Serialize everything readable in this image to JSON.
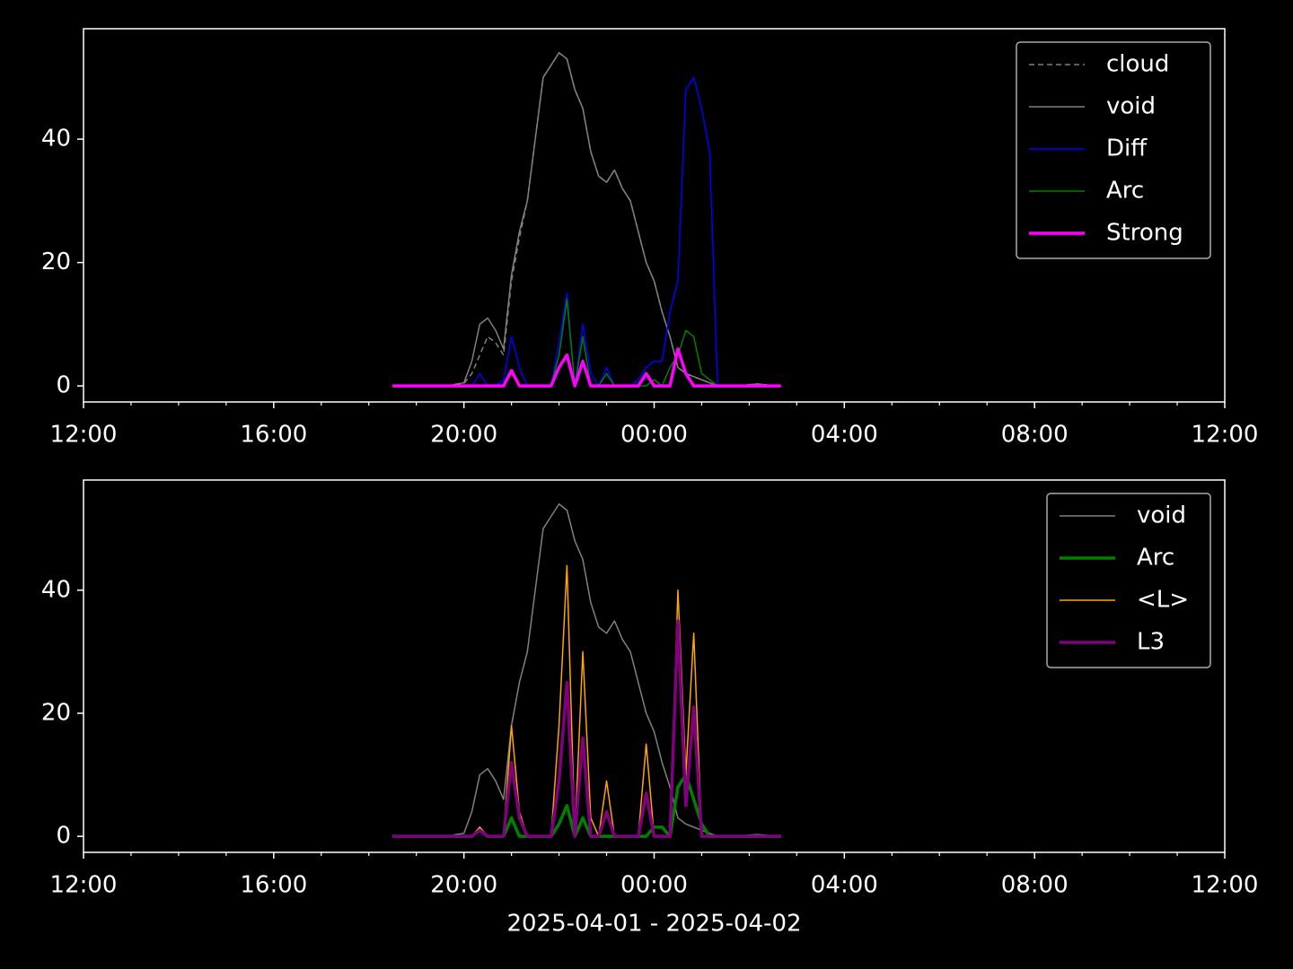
{
  "chart_data": [
    {
      "type": "line",
      "x": [
        "2025-04-01 18:30",
        "2025-04-01 18:40",
        "2025-04-01 18:50",
        "2025-04-01 19:00",
        "2025-04-01 19:10",
        "2025-04-01 19:20",
        "2025-04-01 19:30",
        "2025-04-01 19:40",
        "2025-04-01 19:50",
        "2025-04-01 20:00",
        "2025-04-01 20:10",
        "2025-04-01 20:20",
        "2025-04-01 20:30",
        "2025-04-01 20:40",
        "2025-04-01 20:50",
        "2025-04-01 21:00",
        "2025-04-01 21:10",
        "2025-04-01 21:20",
        "2025-04-01 21:30",
        "2025-04-01 21:40",
        "2025-04-01 21:50",
        "2025-04-01 22:00",
        "2025-04-01 22:10",
        "2025-04-01 22:20",
        "2025-04-01 22:30",
        "2025-04-01 22:40",
        "2025-04-01 22:50",
        "2025-04-01 23:00",
        "2025-04-01 23:10",
        "2025-04-01 23:20",
        "2025-04-01 23:30",
        "2025-04-01 23:40",
        "2025-04-01 23:50",
        "2025-04-02 00:00",
        "2025-04-02 00:10",
        "2025-04-02 00:20",
        "2025-04-02 00:30",
        "2025-04-02 00:40",
        "2025-04-02 00:50",
        "2025-04-02 01:00",
        "2025-04-02 01:10",
        "2025-04-02 01:20",
        "2025-04-02 01:30",
        "2025-04-02 01:40",
        "2025-04-02 01:50",
        "2025-04-02 02:00",
        "2025-04-02 02:10",
        "2025-04-02 02:20",
        "2025-04-02 02:30",
        "2025-04-02 02:40"
      ],
      "series": [
        {
          "name": "cloud",
          "color": "#808080",
          "linestyle": "dashed",
          "linewidth": 1.5,
          "values": [
            0,
            0,
            0,
            0,
            0,
            0,
            0,
            0,
            0.2,
            0.4,
            2,
            5,
            8,
            7,
            5,
            17,
            24,
            30,
            40,
            50,
            52,
            54,
            53,
            48,
            45,
            38,
            34,
            33,
            35,
            32,
            30,
            25,
            20,
            17,
            12,
            8,
            3,
            2,
            1.5,
            1,
            0.5,
            0,
            0,
            0,
            0,
            0.2,
            0.3,
            0.2,
            0,
            0
          ]
        },
        {
          "name": "void",
          "color": "#808080",
          "linestyle": "solid",
          "linewidth": 1.5,
          "values": [
            0,
            0,
            0,
            0,
            0,
            0,
            0,
            0,
            0.3,
            0.5,
            4,
            10,
            11,
            9,
            6,
            18,
            25,
            30,
            40,
            50,
            52,
            54,
            53,
            48,
            45,
            38,
            34,
            33,
            35,
            32,
            30,
            25,
            20,
            17,
            12,
            8,
            3,
            2,
            1.5,
            1,
            0.5,
            0,
            0,
            0,
            0,
            0.2,
            0.3,
            0.2,
            0,
            0
          ]
        },
        {
          "name": "Diff",
          "color": "#0000ff",
          "linestyle": "solid",
          "linewidth": 1.5,
          "values": [
            0,
            0,
            0,
            0,
            0,
            0,
            0,
            0,
            0,
            0,
            0,
            2,
            0,
            0,
            1,
            8,
            3,
            0,
            0,
            0,
            0,
            7,
            15,
            0,
            10,
            2,
            0,
            3,
            0,
            0,
            0,
            1,
            3,
            4,
            4,
            12,
            17,
            48,
            50,
            45,
            38,
            0,
            0,
            0,
            0,
            0,
            0,
            0,
            0,
            0
          ]
        },
        {
          "name": "Arc",
          "color": "#008000",
          "linestyle": "solid",
          "linewidth": 1.5,
          "values": [
            0,
            0,
            0,
            0,
            0,
            0,
            0,
            0,
            0,
            0,
            0,
            0,
            0,
            0,
            0,
            2,
            0,
            0,
            0,
            0,
            0,
            5,
            14,
            0,
            8,
            0,
            0,
            2,
            0,
            0,
            0,
            0,
            0,
            1,
            0,
            3,
            5,
            9,
            8,
            2,
            1,
            0,
            0,
            0,
            0,
            0,
            0,
            0,
            0,
            0
          ]
        },
        {
          "name": "Strong",
          "color": "#ff00ff",
          "linestyle": "solid",
          "linewidth": 3.5,
          "values": [
            0,
            0,
            0,
            0,
            0,
            0,
            0,
            0,
            0,
            0,
            0,
            0,
            0,
            0,
            0,
            2.5,
            0,
            0,
            0,
            0,
            0,
            3,
            5,
            0,
            4,
            0,
            0,
            0,
            0,
            0,
            0,
            0,
            2,
            0,
            0,
            0,
            6,
            2,
            0,
            0,
            0,
            0,
            0,
            0,
            0,
            0,
            0,
            0,
            0,
            0
          ]
        }
      ],
      "xlim": [
        "2025-04-01 12:00",
        "2025-04-02 12:00"
      ],
      "xticks": [
        {
          "value": "2025-04-01 12:00",
          "label": "12:00"
        },
        {
          "value": "2025-04-01 16:00",
          "label": "16:00"
        },
        {
          "value": "2025-04-01 20:00",
          "label": "20:00"
        },
        {
          "value": "2025-04-02 00:00",
          "label": "00:00"
        },
        {
          "value": "2025-04-02 04:00",
          "label": "04:00"
        },
        {
          "value": "2025-04-02 08:00",
          "label": "08:00"
        },
        {
          "value": "2025-04-02 12:00",
          "label": "12:00"
        }
      ],
      "xminorticks": [
        "2025-04-01 13:00",
        "2025-04-01 14:00",
        "2025-04-01 15:00",
        "2025-04-01 17:00",
        "2025-04-01 18:00",
        "2025-04-01 19:00",
        "2025-04-01 21:00",
        "2025-04-01 22:00",
        "2025-04-01 23:00",
        "2025-04-02 01:00",
        "2025-04-02 02:00",
        "2025-04-02 03:00",
        "2025-04-02 05:00",
        "2025-04-02 06:00",
        "2025-04-02 07:00",
        "2025-04-02 09:00",
        "2025-04-02 10:00",
        "2025-04-02 11:00"
      ],
      "ylim": [
        -2.6,
        57.9
      ],
      "yticks": [
        0,
        20,
        40
      ],
      "legend": "upper right"
    },
    {
      "type": "line",
      "x": [
        "2025-04-01 18:30",
        "2025-04-01 18:40",
        "2025-04-01 18:50",
        "2025-04-01 19:00",
        "2025-04-01 19:10",
        "2025-04-01 19:20",
        "2025-04-01 19:30",
        "2025-04-01 19:40",
        "2025-04-01 19:50",
        "2025-04-01 20:00",
        "2025-04-01 20:10",
        "2025-04-01 20:20",
        "2025-04-01 20:30",
        "2025-04-01 20:40",
        "2025-04-01 20:50",
        "2025-04-01 21:00",
        "2025-04-01 21:10",
        "2025-04-01 21:20",
        "2025-04-01 21:30",
        "2025-04-01 21:40",
        "2025-04-01 21:50",
        "2025-04-01 22:00",
        "2025-04-01 22:10",
        "2025-04-01 22:20",
        "2025-04-01 22:30",
        "2025-04-01 22:40",
        "2025-04-01 22:50",
        "2025-04-01 23:00",
        "2025-04-01 23:10",
        "2025-04-01 23:20",
        "2025-04-01 23:30",
        "2025-04-01 23:40",
        "2025-04-01 23:50",
        "2025-04-02 00:00",
        "2025-04-02 00:10",
        "2025-04-02 00:20",
        "2025-04-02 00:30",
        "2025-04-02 00:40",
        "2025-04-02 00:50",
        "2025-04-02 01:00",
        "2025-04-02 01:10",
        "2025-04-02 01:20",
        "2025-04-02 01:30",
        "2025-04-02 01:40",
        "2025-04-02 01:50",
        "2025-04-02 02:00",
        "2025-04-02 02:10",
        "2025-04-02 02:20",
        "2025-04-02 02:30",
        "2025-04-02 02:40"
      ],
      "series": [
        {
          "name": "void",
          "color": "#808080",
          "linestyle": "solid",
          "linewidth": 1.5,
          "values": [
            0,
            0,
            0,
            0,
            0,
            0,
            0,
            0,
            0.3,
            0.5,
            4,
            10,
            11,
            9,
            6,
            18,
            25,
            30,
            40,
            50,
            52,
            54,
            53,
            48,
            45,
            38,
            34,
            33,
            35,
            32,
            30,
            25,
            20,
            17,
            12,
            8,
            3,
            2,
            1.5,
            1,
            0.5,
            0,
            0,
            0,
            0,
            0.2,
            0.3,
            0.2,
            0,
            0
          ]
        },
        {
          "name": "Arc",
          "color": "#008000",
          "linestyle": "solid",
          "linewidth": 3.5,
          "values": [
            0,
            0,
            0,
            0,
            0,
            0,
            0,
            0,
            0,
            0,
            0,
            1,
            0,
            0,
            0,
            3,
            0,
            0,
            0,
            0,
            0,
            2,
            5,
            0,
            3,
            0,
            0,
            0,
            0,
            0,
            0,
            0,
            0,
            1.5,
            1.5,
            0,
            8,
            10,
            6,
            2,
            0,
            0,
            0,
            0,
            0,
            0,
            0,
            0,
            0,
            0
          ]
        },
        {
          "name": "<L>",
          "color": "#ffa500",
          "linestyle": "solid",
          "linewidth": 1.5,
          "values": [
            0,
            0,
            0,
            0,
            0,
            0,
            0,
            0,
            0,
            0,
            0,
            1.5,
            0,
            0,
            0,
            18,
            4,
            0,
            0,
            0,
            0,
            18,
            44,
            0,
            30,
            3,
            0,
            9,
            0,
            0,
            0,
            0,
            15,
            0,
            0,
            0,
            40,
            10,
            33,
            0,
            0,
            0,
            0,
            0,
            0,
            0,
            0,
            0,
            0,
            0
          ]
        },
        {
          "name": "L3",
          "color": "#800080",
          "linestyle": "solid",
          "linewidth": 3.5,
          "values": [
            0,
            0,
            0,
            0,
            0,
            0,
            0,
            0,
            0,
            0,
            0,
            1,
            0,
            0,
            0,
            12,
            3,
            0,
            0,
            0,
            0,
            9,
            25,
            0,
            16,
            0,
            0,
            4,
            0,
            0,
            0,
            0,
            7,
            0,
            0,
            0,
            35,
            5,
            21,
            0,
            0,
            0,
            0,
            0,
            0,
            0,
            0,
            0,
            0,
            0
          ]
        }
      ],
      "xlabel": "2025-04-01 - 2025-04-02",
      "xlim": [
        "2025-04-01 12:00",
        "2025-04-02 12:00"
      ],
      "xticks": [
        {
          "value": "2025-04-01 12:00",
          "label": "12:00"
        },
        {
          "value": "2025-04-01 16:00",
          "label": "16:00"
        },
        {
          "value": "2025-04-01 20:00",
          "label": "20:00"
        },
        {
          "value": "2025-04-02 00:00",
          "label": "00:00"
        },
        {
          "value": "2025-04-02 04:00",
          "label": "04:00"
        },
        {
          "value": "2025-04-02 08:00",
          "label": "08:00"
        },
        {
          "value": "2025-04-02 12:00",
          "label": "12:00"
        }
      ],
      "xminorticks": [
        "2025-04-01 13:00",
        "2025-04-01 14:00",
        "2025-04-01 15:00",
        "2025-04-01 17:00",
        "2025-04-01 18:00",
        "2025-04-01 19:00",
        "2025-04-01 21:00",
        "2025-04-01 22:00",
        "2025-04-01 23:00",
        "2025-04-02 01:00",
        "2025-04-02 02:00",
        "2025-04-02 03:00",
        "2025-04-02 05:00",
        "2025-04-02 06:00",
        "2025-04-02 07:00",
        "2025-04-02 09:00",
        "2025-04-02 10:00",
        "2025-04-02 11:00"
      ],
      "ylim": [
        -2.6,
        57.9
      ],
      "yticks": [
        0,
        20,
        40
      ],
      "legend": "upper right"
    }
  ]
}
